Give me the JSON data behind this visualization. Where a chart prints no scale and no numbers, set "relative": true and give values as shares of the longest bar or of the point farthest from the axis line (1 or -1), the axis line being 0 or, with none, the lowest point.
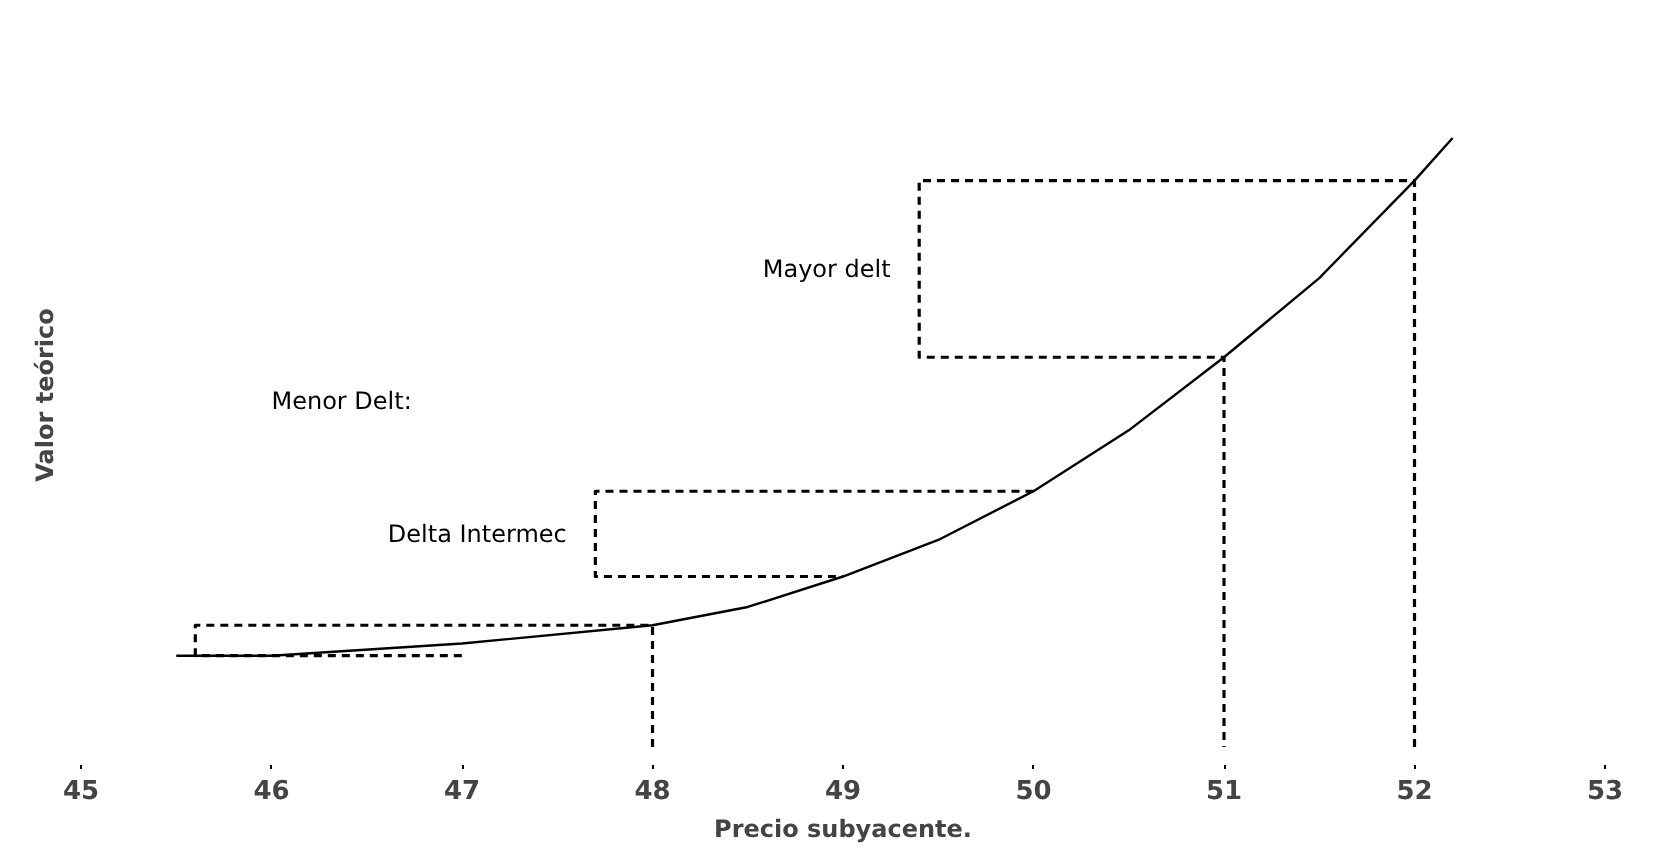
{
  "chart_data": {
    "type": "line",
    "relative": true,
    "xlabel": "Precio subyacente.",
    "ylabel": "Valor teórico",
    "xlim": [
      45,
      53
    ],
    "xticks": [
      45,
      46,
      47,
      48,
      49,
      50,
      51,
      52,
      53
    ],
    "grid": false,
    "marker": "none",
    "series": [
      {
        "color": "#000000",
        "line_style": "solid",
        "x": [
          45.5,
          46,
          47,
          48,
          48.5,
          49,
          49.5,
          50,
          50.5,
          51,
          51.5,
          52,
          52.2
        ],
        "values": [
          0.15,
          0.15,
          0.17,
          0.2,
          0.23,
          0.28,
          0.34,
          0.42,
          0.52,
          0.64,
          0.77,
          0.93,
          1
        ]
      },
      {
        "color": "#000000",
        "line_style": "dashed",
        "x": [
          52,
          52,
          49.4,
          49.4,
          51,
          51
        ],
        "values": [
          0,
          0.93,
          0.93,
          0.64,
          0.64,
          0
        ]
      },
      {
        "color": "#000000",
        "line_style": "dashed",
        "x": [
          50,
          47.7,
          47.7,
          49
        ],
        "values": [
          0.42,
          0.42,
          0.28,
          0.28
        ]
      },
      {
        "color": "#000000",
        "line_style": "dashed",
        "x": [
          48,
          48,
          45.6,
          45.6,
          47
        ],
        "values": [
          0,
          0.2,
          0.2,
          0.15,
          0.15
        ]
      }
    ],
    "annotations": [
      "Mayor delt",
      "Delta Intermec",
      "Menor Delt:"
    ]
  }
}
